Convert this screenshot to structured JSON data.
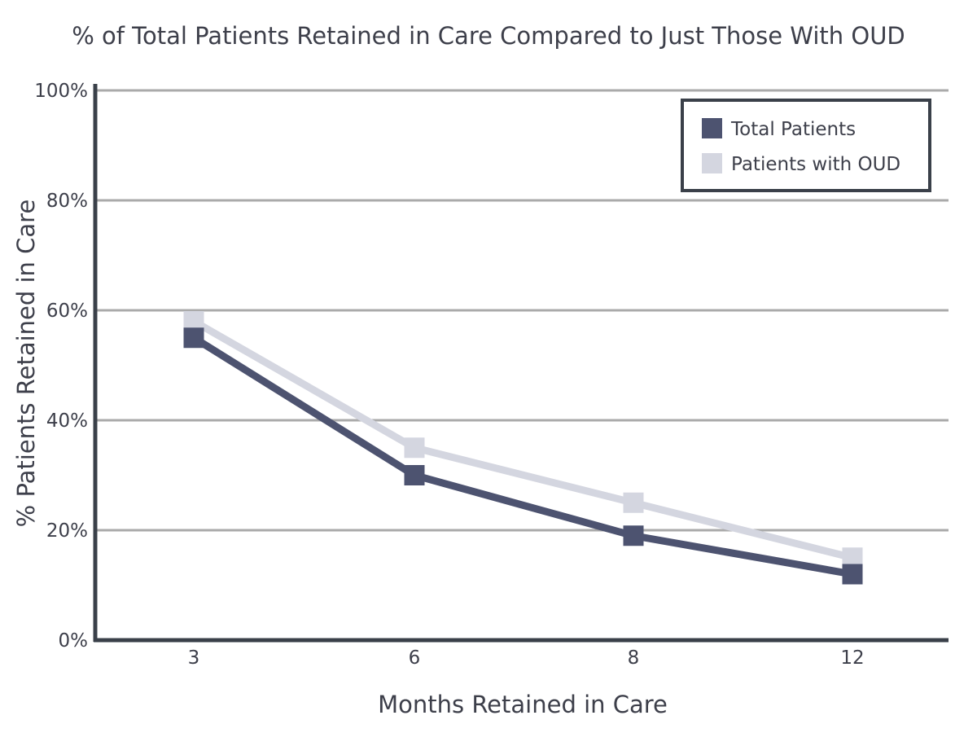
{
  "chart_data": {
    "type": "line",
    "title": "% of Total Patients Retained in Care Compared to Just Those With OUD",
    "xlabel": "Months Retained in Care",
    "ylabel": "% Patients Retained in Care",
    "categories": [
      "3",
      "6",
      "8",
      "12"
    ],
    "y_ticks": [
      "0%",
      "20%",
      "40%",
      "60%",
      "80%",
      "100%"
    ],
    "ylim": [
      0,
      100
    ],
    "grid": true,
    "legend_position": "top-right",
    "series": [
      {
        "name": "Total Patients",
        "values": [
          55,
          30,
          19,
          12
        ],
        "color": "#4d5370"
      },
      {
        "name": "Patients with OUD",
        "values": [
          58,
          35,
          25,
          15
        ],
        "color": "#d4d6e0"
      }
    ],
    "colors": {
      "axis": "#3a4049",
      "grid": "#aaaaaa",
      "text": "#3d3f4a"
    }
  }
}
